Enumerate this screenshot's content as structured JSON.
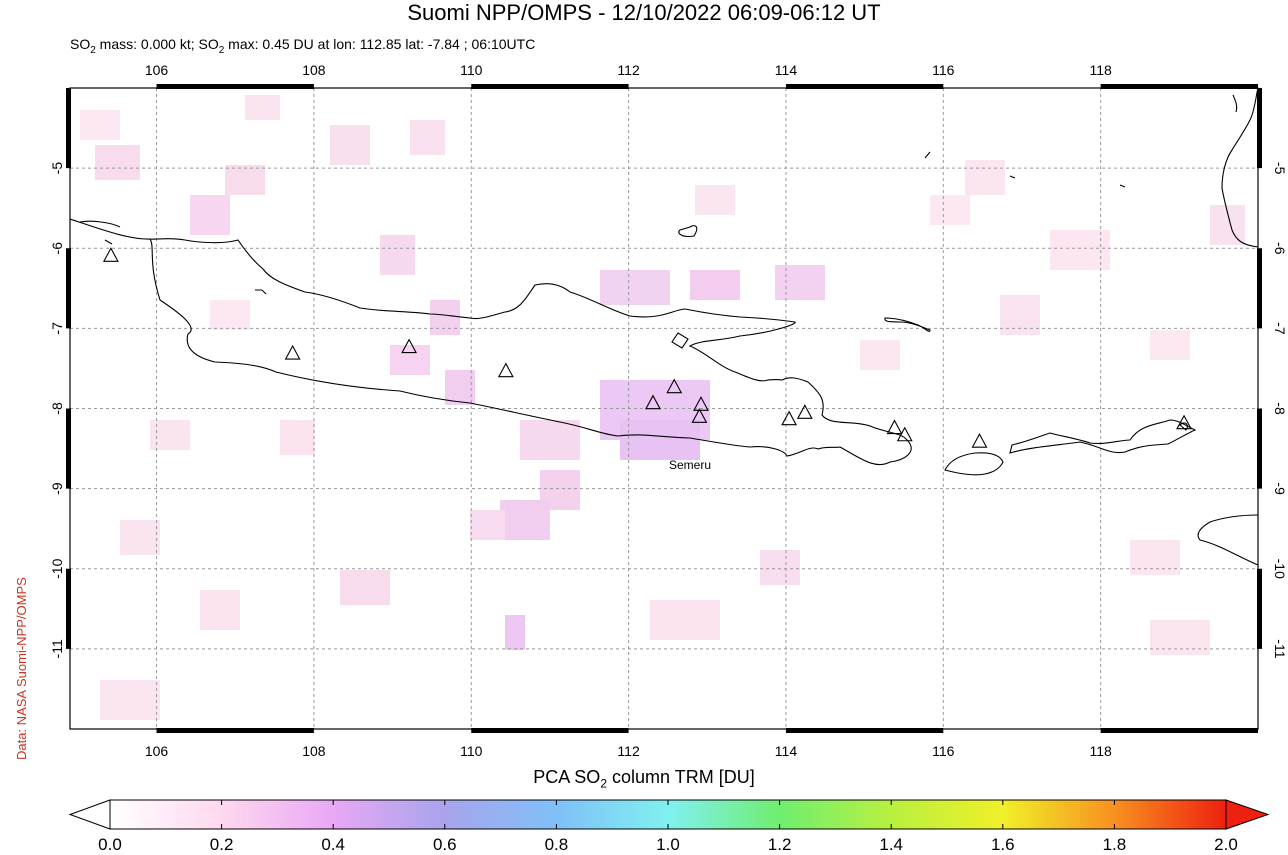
{
  "header": {
    "title": "Suomi NPP/OMPS - 12/10/2022 06:09-06:12 UT",
    "stats_prefix": "SO",
    "stats_sub": "2",
    "stats_mid": " mass: 0.000 kt; SO",
    "stats_sub2": "2",
    "stats_suffix": " max: 0.45 DU at lon: 112.85 lat: -7.84 ; 06:10UTC"
  },
  "credit": "Data: NASA Suomi-NPP/OMPS",
  "map": {
    "lon_ticks": [
      "106",
      "108",
      "110",
      "112",
      "114",
      "116",
      "118"
    ],
    "lat_ticks": [
      "-5",
      "-6",
      "-7",
      "-8",
      "-9",
      "-10",
      "-11"
    ],
    "lon_range": [
      104.9,
      120.0
    ],
    "lat_range": [
      -12.0,
      -4.0
    ],
    "grid": true,
    "volcano_label": "Semeru",
    "volcanoes": [
      {
        "lon": 105.42,
        "lat": -6.1
      },
      {
        "lon": 107.73,
        "lat": -7.32
      },
      {
        "lon": 109.21,
        "lat": -7.24
      },
      {
        "lon": 110.44,
        "lat": -7.54
      },
      {
        "lon": 112.31,
        "lat": -7.94
      },
      {
        "lon": 112.58,
        "lat": -7.74
      },
      {
        "lon": 112.92,
        "lat": -7.96
      },
      {
        "lon": 112.9,
        "lat": -8.11
      },
      {
        "lon": 114.04,
        "lat": -8.14
      },
      {
        "lon": 114.24,
        "lat": -8.06
      },
      {
        "lon": 115.38,
        "lat": -8.25
      },
      {
        "lon": 115.51,
        "lat": -8.34
      },
      {
        "lon": 116.46,
        "lat": -8.42
      },
      {
        "lon": 119.06,
        "lat": -8.19
      }
    ]
  },
  "colorbar": {
    "label_prefix": "PCA SO",
    "label_sub": "2",
    "label_suffix": " column TRM [DU]",
    "ticks": [
      "0.0",
      "0.2",
      "0.4",
      "0.6",
      "0.8",
      "1.0",
      "1.2",
      "1.4",
      "1.6",
      "1.8",
      "2.0"
    ],
    "colors": [
      "#ffffff",
      "#ffd8f0",
      "#e8a8f4",
      "#a8a4ec",
      "#80c0f8",
      "#80f0f0",
      "#70ee70",
      "#b8f040",
      "#f0f028",
      "#f89020",
      "#ee2010"
    ]
  }
}
